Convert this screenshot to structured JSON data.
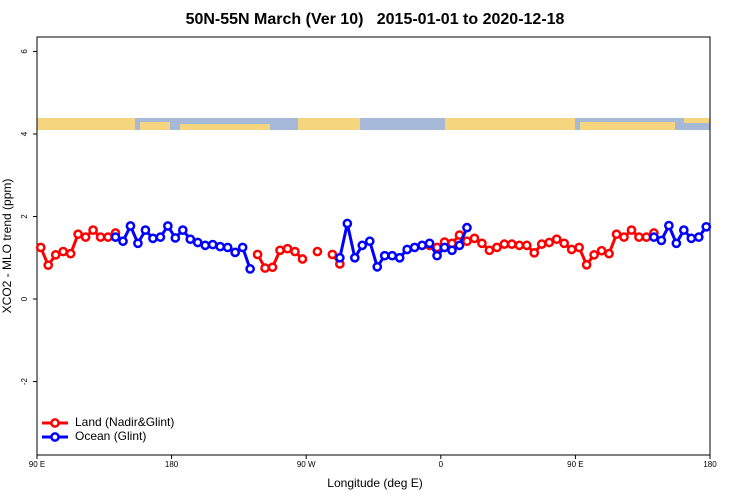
{
  "chart_data": {
    "type": "line",
    "title": "50N-55N March (Ver 10)   2015-01-01 to 2020-12-18",
    "x_label": "Longitude (deg E)",
    "y_label": "XCO2 - MLO trend (ppm)",
    "xlim": [
      90,
      540
    ],
    "xticks": [
      {
        "value": 90,
        "label": "90 E"
      },
      180,
      {
        "value": 270,
        "label": "90 W"
      },
      {
        "value": 360,
        "label": "0"
      },
      {
        "value": 450,
        "label": "90 E"
      },
      180
    ],
    "ylim": [
      -3.78,
      6.35
    ],
    "yticks": [
      -2,
      0,
      2,
      4,
      6
    ],
    "legend": "bottomleft",
    "x": [
      92.5,
      97.5,
      102.5,
      107.5,
      112.5,
      117.5,
      122.5,
      127.5,
      132.5,
      137.5,
      142.5,
      147.5,
      152.5,
      157.5,
      162.5,
      167.5,
      172.5,
      177.5,
      182.5,
      187.5,
      192.5,
      197.5,
      202.5,
      207.5,
      212.5,
      217.5,
      222.5,
      227.5,
      232.5,
      237.5,
      242.5,
      247.5,
      252.5,
      257.5,
      262.5,
      267.5,
      272.5,
      277.5,
      282.5,
      287.5,
      292.5,
      297.5,
      302.5,
      307.5,
      312.5,
      317.5,
      322.5,
      327.5,
      332.5,
      337.5,
      342.5,
      347.5,
      352.5,
      357.5,
      362.5,
      367.5,
      372.5,
      377.5,
      382.5,
      387.5,
      392.5,
      397.5,
      402.5,
      407.5,
      412.5,
      417.5,
      422.5,
      427.5,
      432.5,
      437.5,
      442.5,
      447.5,
      452.5,
      457.5,
      462.5,
      467.5,
      472.5,
      477.5,
      482.5,
      487.5,
      492.5,
      497.5,
      502.5,
      507.5,
      512.5,
      517.5,
      522.5,
      527.5,
      532.5,
      537.5
    ],
    "series": [
      {
        "name": "Land (Nadir&Glint)",
        "color": "#ff0000",
        "values": [
          1.25,
          0.82,
          1.07,
          1.15,
          1.1,
          1.57,
          1.5,
          1.67,
          1.5,
          1.5,
          1.6,
          null,
          null,
          null,
          null,
          null,
          null,
          null,
          null,
          null,
          null,
          null,
          null,
          null,
          null,
          null,
          null,
          null,
          null,
          1.08,
          0.75,
          0.77,
          1.18,
          1.22,
          1.15,
          0.97,
          null,
          1.15,
          null,
          1.08,
          0.85,
          null,
          null,
          null,
          null,
          null,
          null,
          null,
          null,
          null,
          null,
          null,
          1.3,
          1.25,
          1.38,
          1.35,
          1.55,
          1.4,
          1.47,
          1.35,
          1.18,
          1.25,
          1.33,
          1.33,
          1.3,
          1.3,
          1.12,
          1.33,
          1.37,
          1.45,
          1.35,
          1.2,
          1.25,
          0.83,
          1.07,
          1.17,
          1.1,
          1.57,
          1.5,
          1.67,
          1.5,
          1.5,
          1.6,
          null,
          null,
          null,
          null,
          null,
          null,
          null
        ]
      },
      {
        "name": "Ocean (Glint)",
        "color": "#0000ff",
        "values": [
          null,
          null,
          null,
          null,
          null,
          null,
          null,
          null,
          null,
          null,
          1.5,
          1.4,
          1.77,
          1.35,
          1.67,
          1.47,
          1.5,
          1.77,
          1.48,
          1.67,
          1.45,
          1.37,
          1.3,
          1.32,
          1.27,
          1.25,
          1.13,
          1.25,
          0.73,
          null,
          null,
          null,
          null,
          null,
          null,
          null,
          null,
          null,
          null,
          null,
          1.0,
          1.83,
          1.0,
          1.3,
          1.4,
          0.78,
          1.05,
          1.05,
          1.0,
          1.2,
          1.25,
          1.3,
          1.35,
          1.05,
          1.25,
          1.18,
          1.3,
          1.73,
          null,
          null,
          null,
          null,
          null,
          null,
          null,
          null,
          null,
          null,
          null,
          null,
          null,
          null,
          null,
          null,
          null,
          null,
          null,
          null,
          null,
          null,
          null,
          null,
          1.5,
          1.42,
          1.78,
          1.35,
          1.67,
          1.47,
          1.5,
          1.75
        ]
      }
    ]
  }
}
